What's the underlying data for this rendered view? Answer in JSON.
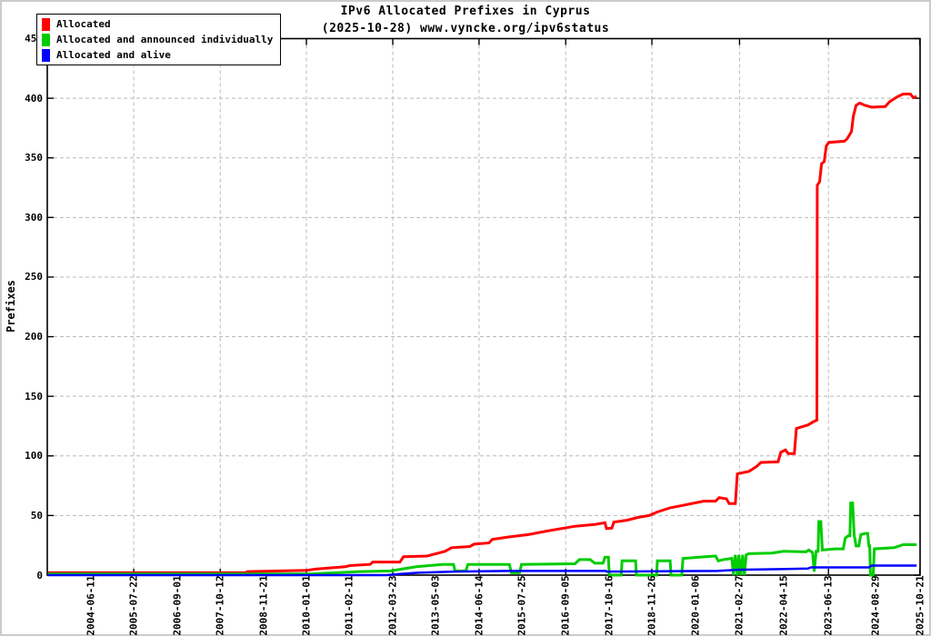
{
  "title": {
    "line1": "IPv6 Allocated Prefixes in Cyprus",
    "line2": "(2025-10-28) www.vyncke.org/ipv6status"
  },
  "legend": {
    "items": [
      {
        "label": "Allocated",
        "color": "#ff0000"
      },
      {
        "label": "Allocated and announced individually",
        "color": "#00cc00"
      },
      {
        "label": "Allocated and alive",
        "color": "#0000ff"
      }
    ]
  },
  "axes": {
    "ylabel": "Prefixes"
  },
  "chart_data": {
    "type": "line",
    "title": "IPv6 Allocated Prefixes in Cyprus",
    "subtitle": "(2025-10-28) www.vyncke.org/ipv6status",
    "xlabel": "",
    "ylabel": "Prefixes",
    "ylim": [
      0,
      450
    ],
    "y_ticks": [
      0,
      50,
      100,
      150,
      200,
      250,
      300,
      350,
      400,
      450
    ],
    "grid": "dashed gray; horizontal at every y tick, vertical at every other x tick",
    "legend_position": "top-left",
    "x_tick_labels": [
      "2004-06-11",
      "2005-07-22",
      "2006-09-01",
      "2007-10-12",
      "2008-11-21",
      "2010-01-01",
      "2011-02-11",
      "2012-03-23",
      "2013-05-03",
      "2014-06-14",
      "2015-07-25",
      "2016-09-05",
      "2017-10-16",
      "2018-11-26",
      "2020-01-06",
      "2021-02-27",
      "2022-04-15",
      "2023-06-13",
      "2024-08-29",
      "2025-10-21"
    ],
    "x_tick_years": [
      2004.443,
      2005.553,
      2006.666,
      2007.781,
      2008.89,
      2010.0,
      2011.112,
      2012.225,
      2013.334,
      2014.447,
      2015.559,
      2016.68,
      2017.789,
      2018.899,
      2020.014,
      2021.157,
      2022.285,
      2023.447,
      2024.66,
      2025.8
    ],
    "series": [
      {
        "name": "Allocated",
        "color": "#ff0000",
        "width": 3,
        "points": [
          [
            2003.34,
            2
          ],
          [
            2008.43,
            2
          ],
          [
            2008.48,
            3
          ],
          [
            2010.0,
            4
          ],
          [
            2010.23,
            5
          ],
          [
            2011.0,
            7
          ],
          [
            2011.12,
            8
          ],
          [
            2011.64,
            9
          ],
          [
            2011.71,
            11
          ],
          [
            2012.41,
            11
          ],
          [
            2012.5,
            15.5
          ],
          [
            2013.11,
            16
          ],
          [
            2013.22,
            17
          ],
          [
            2013.57,
            20
          ],
          [
            2013.74,
            23
          ],
          [
            2014.21,
            24
          ],
          [
            2014.32,
            26
          ],
          [
            2014.7,
            27
          ],
          [
            2014.79,
            30
          ],
          [
            2015.21,
            32
          ],
          [
            2015.72,
            34
          ],
          [
            2016.21,
            37
          ],
          [
            2016.92,
            41
          ],
          [
            2017.43,
            42.5
          ],
          [
            2017.69,
            44
          ],
          [
            2017.73,
            39
          ],
          [
            2017.87,
            39.5
          ],
          [
            2017.92,
            44.5
          ],
          [
            2018.25,
            46
          ],
          [
            2018.55,
            48.5
          ],
          [
            2018.83,
            50
          ],
          [
            2019.04,
            53
          ],
          [
            2019.37,
            56.5
          ],
          [
            2019.7,
            58.5
          ],
          [
            2020.07,
            61
          ],
          [
            2020.23,
            62
          ],
          [
            2020.54,
            62
          ],
          [
            2020.63,
            65
          ],
          [
            2020.82,
            64
          ],
          [
            2020.89,
            60
          ],
          [
            2021.05,
            60
          ],
          [
            2021.1,
            85
          ],
          [
            2021.4,
            87
          ],
          [
            2021.59,
            91
          ],
          [
            2021.71,
            94.5
          ],
          [
            2022.15,
            95
          ],
          [
            2022.22,
            103
          ],
          [
            2022.34,
            105
          ],
          [
            2022.41,
            102
          ],
          [
            2022.57,
            102
          ],
          [
            2022.62,
            123
          ],
          [
            2022.92,
            126
          ],
          [
            2023.08,
            129
          ],
          [
            2023.15,
            130
          ],
          [
            2023.16,
            327
          ],
          [
            2023.22,
            330
          ],
          [
            2023.27,
            345
          ],
          [
            2023.34,
            347
          ],
          [
            2023.39,
            360
          ],
          [
            2023.46,
            363
          ],
          [
            2023.86,
            364
          ],
          [
            2023.93,
            366
          ],
          [
            2024.04,
            372
          ],
          [
            2024.09,
            385
          ],
          [
            2024.16,
            394
          ],
          [
            2024.25,
            396
          ],
          [
            2024.39,
            394
          ],
          [
            2024.56,
            392.5
          ],
          [
            2024.91,
            393
          ],
          [
            2025.02,
            397
          ],
          [
            2025.21,
            401
          ],
          [
            2025.37,
            403.5
          ],
          [
            2025.56,
            403.5
          ],
          [
            2025.63,
            400.5
          ],
          [
            2025.72,
            401.5
          ]
        ]
      },
      {
        "name": "Allocated and announced individually",
        "color": "#00cc00",
        "width": 3,
        "points": [
          [
            2003.34,
            1
          ],
          [
            2010.07,
            1
          ],
          [
            2010.77,
            2
          ],
          [
            2011.36,
            3
          ],
          [
            2012.17,
            3.5
          ],
          [
            2012.45,
            5
          ],
          [
            2012.83,
            7
          ],
          [
            2013.5,
            9
          ],
          [
            2013.79,
            9
          ],
          [
            2013.83,
            3.5
          ],
          [
            2014.11,
            3.5
          ],
          [
            2014.16,
            9
          ],
          [
            2015.23,
            9
          ],
          [
            2015.28,
            2
          ],
          [
            2015.49,
            2
          ],
          [
            2015.54,
            9
          ],
          [
            2016.92,
            9.5
          ],
          [
            2017.03,
            13
          ],
          [
            2017.31,
            13
          ],
          [
            2017.43,
            10
          ],
          [
            2017.64,
            10
          ],
          [
            2017.69,
            15
          ],
          [
            2017.78,
            15
          ],
          [
            2017.8,
            0
          ],
          [
            2018.11,
            0
          ],
          [
            2018.13,
            12
          ],
          [
            2018.48,
            12
          ],
          [
            2018.5,
            0
          ],
          [
            2019.02,
            0
          ],
          [
            2019.04,
            12
          ],
          [
            2019.37,
            12
          ],
          [
            2019.39,
            0
          ],
          [
            2019.67,
            0
          ],
          [
            2019.7,
            14
          ],
          [
            2020.12,
            15
          ],
          [
            2020.54,
            16
          ],
          [
            2020.61,
            12
          ],
          [
            2020.75,
            13
          ],
          [
            2020.96,
            14
          ],
          [
            2021.0,
            0
          ],
          [
            2021.05,
            17
          ],
          [
            2021.1,
            0
          ],
          [
            2021.14,
            17
          ],
          [
            2021.19,
            0
          ],
          [
            2021.24,
            17
          ],
          [
            2021.28,
            0
          ],
          [
            2021.33,
            17
          ],
          [
            2021.4,
            18
          ],
          [
            2021.99,
            18.5
          ],
          [
            2022.29,
            20
          ],
          [
            2022.87,
            19.5
          ],
          [
            2022.94,
            21
          ],
          [
            2023.04,
            19
          ],
          [
            2023.08,
            3
          ],
          [
            2023.13,
            20
          ],
          [
            2023.18,
            20
          ],
          [
            2023.2,
            45
          ],
          [
            2023.25,
            45
          ],
          [
            2023.29,
            21
          ],
          [
            2023.62,
            22
          ],
          [
            2023.83,
            22
          ],
          [
            2023.88,
            31
          ],
          [
            2023.95,
            33
          ],
          [
            2024.0,
            33
          ],
          [
            2024.02,
            60.5
          ],
          [
            2024.07,
            60.5
          ],
          [
            2024.11,
            33.5
          ],
          [
            2024.16,
            24.5
          ],
          [
            2024.23,
            24.5
          ],
          [
            2024.28,
            34
          ],
          [
            2024.39,
            35
          ],
          [
            2024.46,
            35
          ],
          [
            2024.49,
            24.5
          ],
          [
            2024.51,
            24.5
          ],
          [
            2024.53,
            0
          ],
          [
            2024.6,
            0
          ],
          [
            2024.63,
            22
          ],
          [
            2025.14,
            23
          ],
          [
            2025.37,
            25.5
          ],
          [
            2025.72,
            25.5
          ]
        ]
      },
      {
        "name": "Allocated and alive",
        "color": "#0000ff",
        "width": 2.5,
        "points": [
          [
            2003.34,
            0
          ],
          [
            2012.06,
            0
          ],
          [
            2012.41,
            1
          ],
          [
            2012.87,
            2
          ],
          [
            2013.81,
            3
          ],
          [
            2015.21,
            3.5
          ],
          [
            2017.71,
            3.5
          ],
          [
            2017.73,
            3
          ],
          [
            2020.58,
            3.5
          ],
          [
            2021.1,
            4.5
          ],
          [
            2022.22,
            5
          ],
          [
            2022.92,
            5.5
          ],
          [
            2022.99,
            6.5
          ],
          [
            2024.49,
            6.5
          ],
          [
            2024.56,
            8
          ],
          [
            2025.72,
            8
          ]
        ]
      }
    ]
  }
}
